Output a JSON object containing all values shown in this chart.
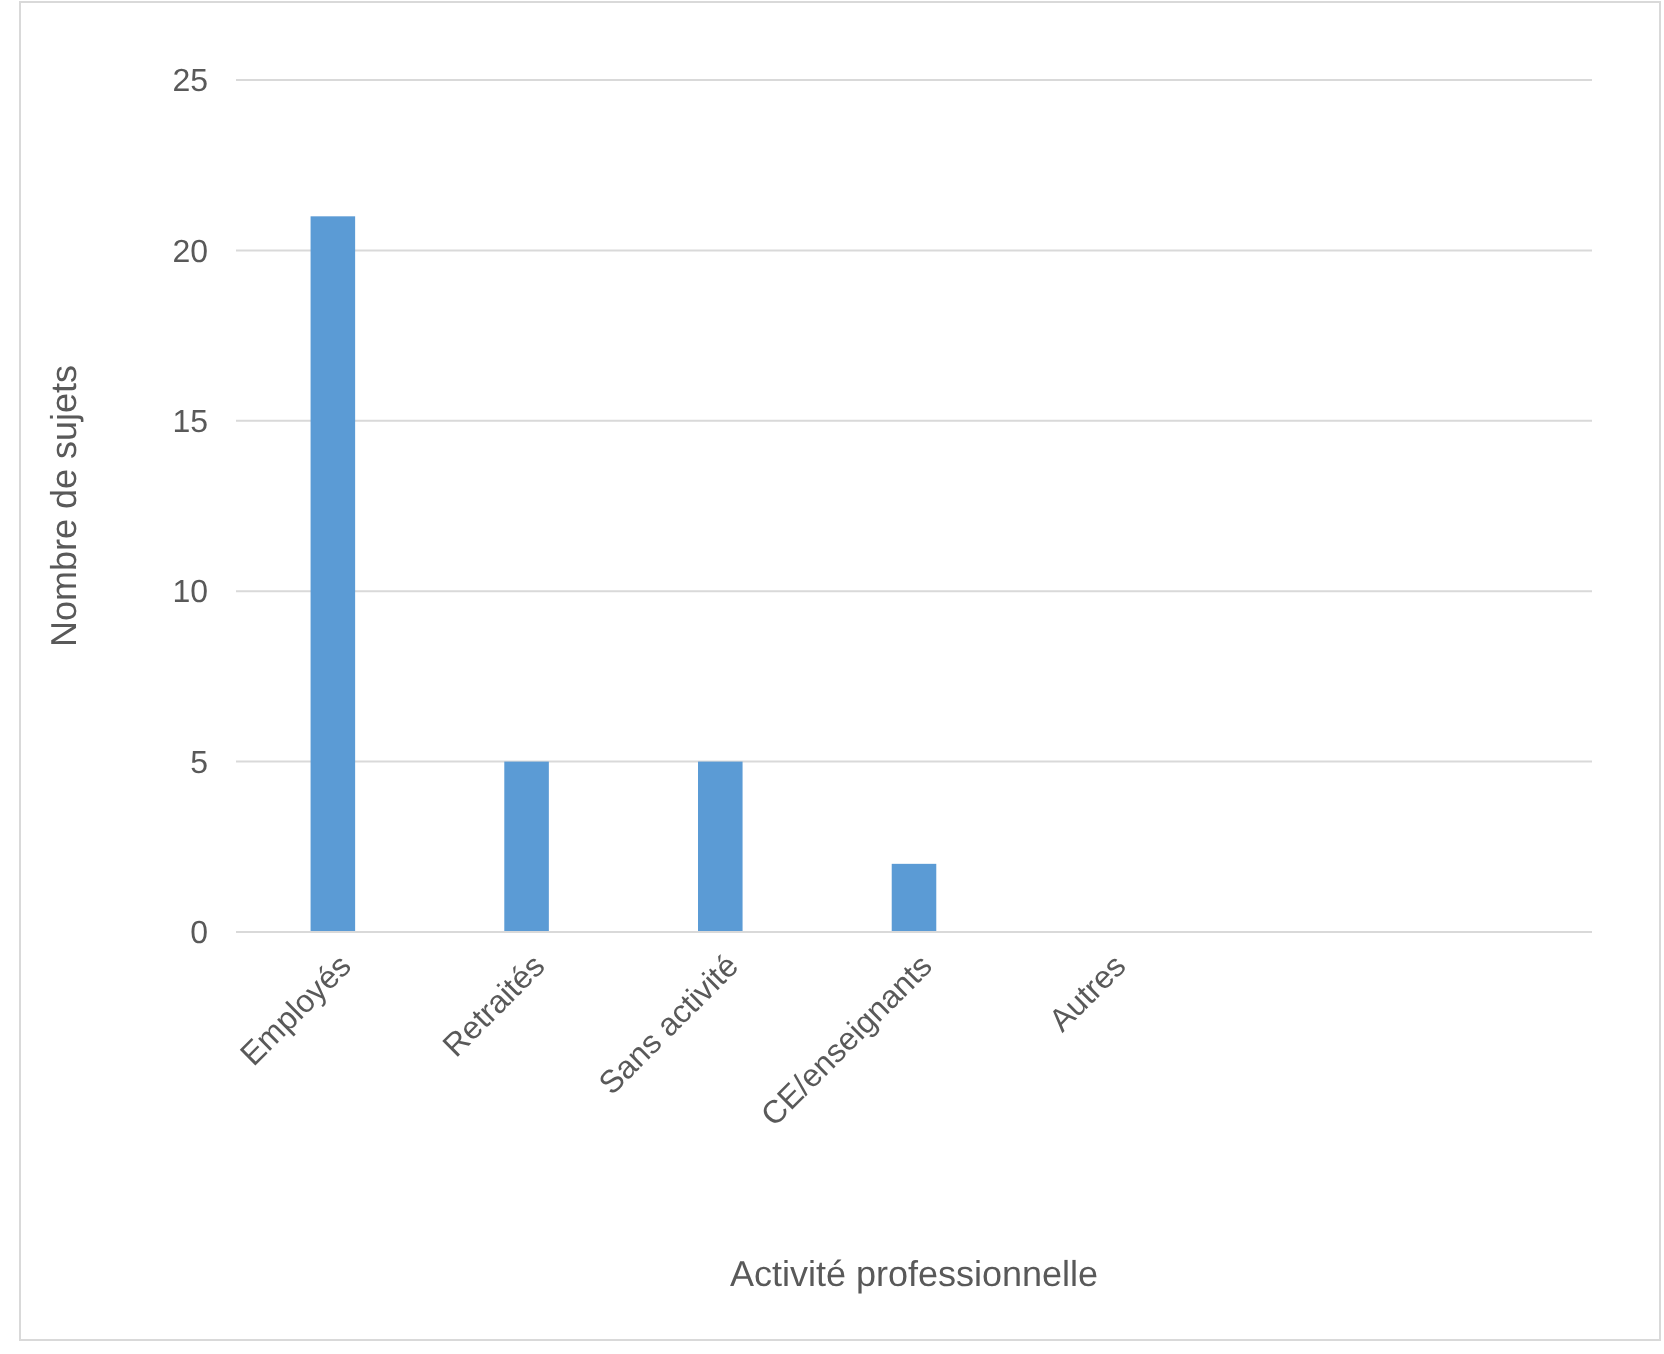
{
  "chart_data": {
    "type": "bar",
    "xlabel": "Activité professionnelle",
    "ylabel": "Nombre de sujets",
    "categories": [
      "Employés",
      "Retraités",
      "Sans activité",
      "CE/enseignants",
      "Autres",
      null,
      null
    ],
    "values": [
      21,
      5,
      5,
      2,
      0,
      null,
      null
    ],
    "color": "#5b9bd5",
    "ylim": [
      0,
      25
    ],
    "yticks": [
      0,
      5,
      10,
      15,
      20,
      25
    ],
    "grid": "y"
  }
}
